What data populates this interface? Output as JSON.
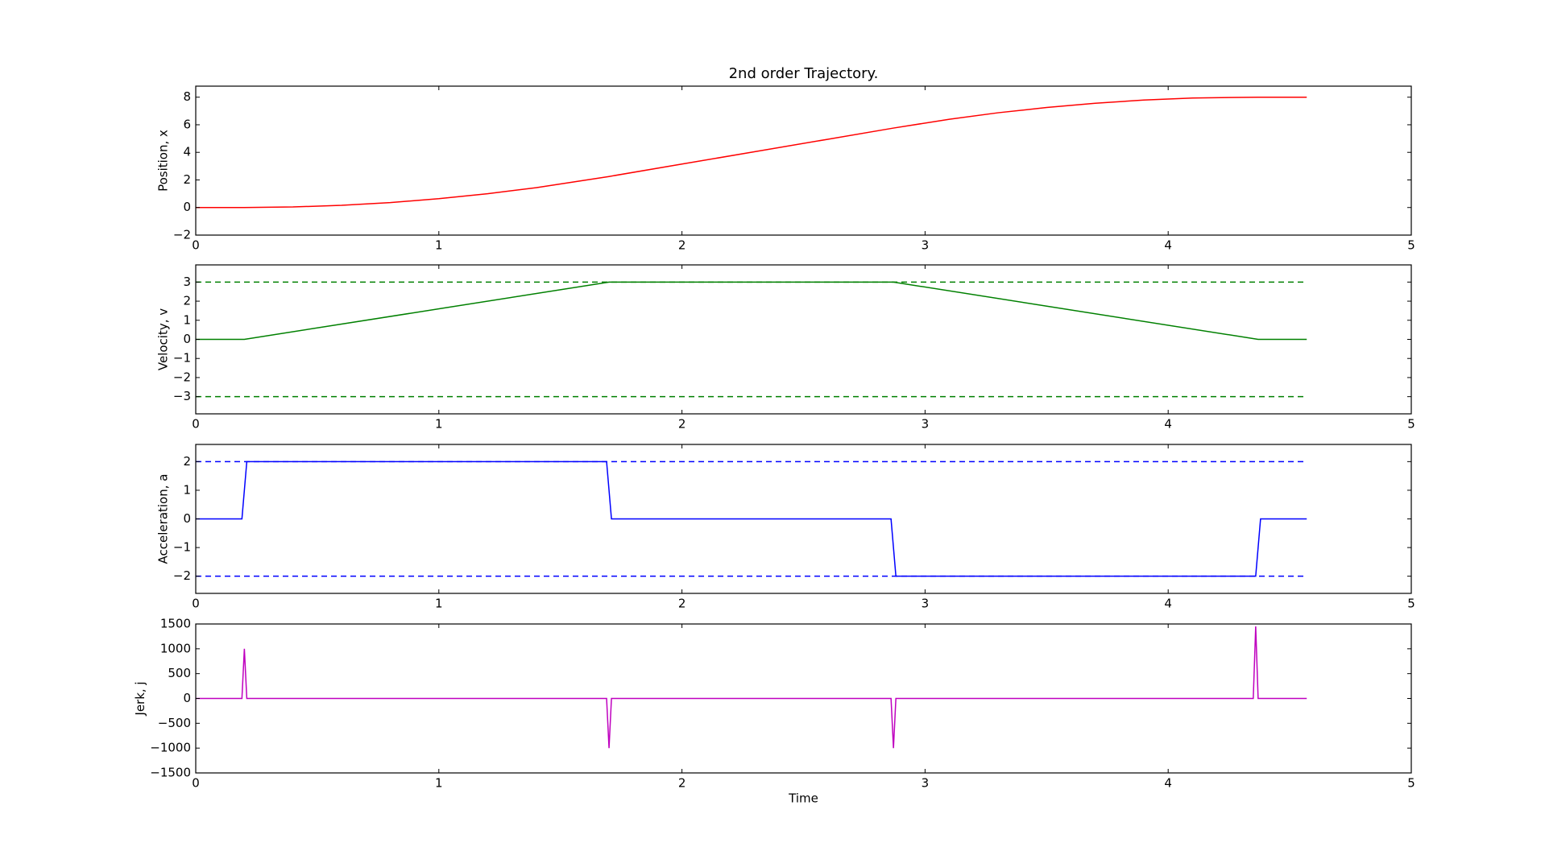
{
  "chart_data": [
    {
      "type": "line",
      "title": "2nd order Trajectory.",
      "ylabel": "Position, x",
      "xlim": [
        0,
        5
      ],
      "xticks": [
        0,
        1,
        2,
        3,
        4,
        5
      ],
      "ylim": [
        -2,
        8.8
      ],
      "yticks": [
        {
          "value": -2,
          "label": "−2"
        },
        0,
        2,
        4,
        6,
        8
      ],
      "series": [
        {
          "color": "#ff0000",
          "dashed": false,
          "x": [
            0,
            0.2,
            0.4,
            0.6,
            0.8,
            1.0,
            1.2,
            1.4,
            1.7,
            2.0,
            2.3,
            2.6,
            2.87,
            3.1,
            3.3,
            3.5,
            3.7,
            3.9,
            4.1,
            4.37,
            4.57
          ],
          "values": [
            0,
            0,
            0.04,
            0.16,
            0.36,
            0.64,
            1.0,
            1.44,
            2.25,
            3.15,
            4.05,
            4.95,
            5.76,
            6.4,
            6.87,
            7.25,
            7.56,
            7.79,
            7.94,
            8.0,
            8.0
          ]
        }
      ]
    },
    {
      "type": "line",
      "ylabel": "Velocity, v",
      "xlim": [
        0,
        5
      ],
      "xticks": [
        0,
        1,
        2,
        3,
        4,
        5
      ],
      "ylim": [
        -3.9,
        3.9
      ],
      "yticks": [
        {
          "value": -3,
          "label": "−3"
        },
        {
          "value": -2,
          "label": "−2"
        },
        {
          "value": -1,
          "label": "−1"
        },
        0,
        1,
        2,
        3
      ],
      "series": [
        {
          "color": "#008000",
          "dashed": false,
          "x": [
            0,
            0.2,
            1.7,
            2.87,
            4.37,
            4.57
          ],
          "values": [
            0,
            0,
            3,
            3,
            0,
            0
          ]
        },
        {
          "color": "#008000",
          "dashed": true,
          "x": [
            0,
            4.57
          ],
          "values": [
            3,
            3
          ]
        },
        {
          "color": "#008000",
          "dashed": true,
          "x": [
            0,
            4.57
          ],
          "values": [
            -3,
            -3
          ]
        }
      ]
    },
    {
      "type": "line",
      "ylabel": "Acceleration, a",
      "xlim": [
        0,
        5
      ],
      "xticks": [
        0,
        1,
        2,
        3,
        4,
        5
      ],
      "ylim": [
        -2.6,
        2.6
      ],
      "yticks": [
        {
          "value": -2,
          "label": "−2"
        },
        {
          "value": -1,
          "label": "−1"
        },
        0,
        1,
        2
      ],
      "series": [
        {
          "color": "#0000ff",
          "dashed": false,
          "x": [
            0,
            0.19,
            0.21,
            1.69,
            1.71,
            2.86,
            2.88,
            4.36,
            4.38,
            4.57
          ],
          "values": [
            0,
            0,
            2,
            2,
            0,
            0,
            -2,
            -2,
            0,
            0
          ]
        },
        {
          "color": "#0000ff",
          "dashed": true,
          "x": [
            0,
            4.57
          ],
          "values": [
            2,
            2
          ]
        },
        {
          "color": "#0000ff",
          "dashed": true,
          "x": [
            0,
            4.57
          ],
          "values": [
            -2,
            -2
          ]
        }
      ]
    },
    {
      "type": "line",
      "ylabel": "Jerk, j",
      "xlabel": "Time",
      "xlim": [
        0,
        5
      ],
      "xticks": [
        0,
        1,
        2,
        3,
        4,
        5
      ],
      "ylim": [
        -1500,
        1500
      ],
      "yticks": [
        {
          "value": -1500,
          "label": "−1500"
        },
        {
          "value": -1000,
          "label": "−1000"
        },
        {
          "value": -500,
          "label": "−500"
        },
        0,
        500,
        1000,
        1500
      ],
      "series": [
        {
          "color": "#bf00bf",
          "dashed": false,
          "x": [
            0,
            0.19,
            0.2,
            0.21,
            1.69,
            1.7,
            1.71,
            2.86,
            2.87,
            2.88,
            4.35,
            4.36,
            4.37,
            4.57
          ],
          "values": [
            0,
            0,
            1000,
            0,
            0,
            -1000,
            0,
            0,
            -1000,
            0,
            0,
            1450,
            0,
            0
          ]
        }
      ]
    }
  ]
}
